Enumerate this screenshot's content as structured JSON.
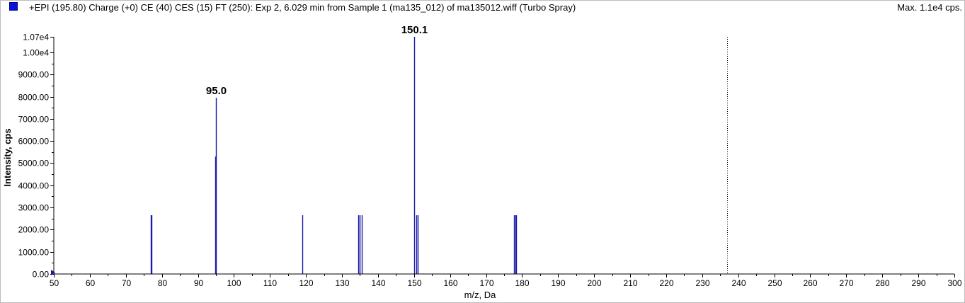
{
  "header": {
    "title": "+EPI (195.80) Charge (+0) CE (40) CES (15) FT (250): Exp 2, 6.029 min from Sample 1 (ma135_012) of ma135012.wiff (Turbo Spray)",
    "max_label": "Max. 1.1e4 cps."
  },
  "colors": {
    "series": "#1a1aa6",
    "legend_swatch": "#0a14d8",
    "axis": "#000000"
  },
  "chart_data": {
    "type": "bar",
    "title": "+EPI (195.80) Charge (+0) CE (40) CES (15) FT (250): Exp 2, 6.029 min from Sample 1 (ma135_012) of ma135012.wiff (Turbo Spray)",
    "xlabel": "m/z, Da",
    "ylabel": "Intensity, cps",
    "xlim": [
      50,
      300
    ],
    "ylim": [
      0,
      10700
    ],
    "x_ticks": [
      "50",
      "60",
      "70",
      "80",
      "90",
      "100",
      "110",
      "120",
      "130",
      "140",
      "150",
      "160",
      "170",
      "180",
      "190",
      "200",
      "210",
      "220",
      "230",
      "240",
      "250",
      "260",
      "270",
      "280",
      "290",
      "300"
    ],
    "y_ticks": [
      {
        "value": 0,
        "label": "0.00"
      },
      {
        "value": 1000,
        "label": "1000.00"
      },
      {
        "value": 2000,
        "label": "2000.00"
      },
      {
        "value": 3000,
        "label": "3000.00"
      },
      {
        "value": 4000,
        "label": "4000.00"
      },
      {
        "value": 5000,
        "label": "5000.00"
      },
      {
        "value": 6000,
        "label": "6000.00"
      },
      {
        "value": 7000,
        "label": "7000.00"
      },
      {
        "value": 8000,
        "label": "8000.00"
      },
      {
        "value": 9000,
        "label": "9000.00"
      },
      {
        "value": 10000,
        "label": "1.00e4"
      },
      {
        "value": 10700,
        "label": "1.07e4"
      }
    ],
    "series": [
      {
        "peaks": [
          {
            "mz": 76.9,
            "intensity": 2650
          },
          {
            "mz": 77.1,
            "intensity": 2650
          },
          {
            "mz": 94.9,
            "intensity": 5300
          },
          {
            "mz": 95.0,
            "intensity": 7950,
            "label": "95.0"
          },
          {
            "mz": 119.0,
            "intensity": 2650
          },
          {
            "mz": 134.6,
            "intensity": 2650
          },
          {
            "mz": 135.0,
            "intensity": 2650
          },
          {
            "mz": 135.4,
            "intensity": 2650
          },
          {
            "mz": 150.1,
            "intensity": 10700,
            "label": "150.1"
          },
          {
            "mz": 150.6,
            "intensity": 2650
          },
          {
            "mz": 151.1,
            "intensity": 2650
          },
          {
            "mz": 177.8,
            "intensity": 2650
          },
          {
            "mz": 178.1,
            "intensity": 2650
          },
          {
            "mz": 178.3,
            "intensity": 2650
          }
        ]
      }
    ],
    "precursor_marker_mz": 236.9,
    "grid": false,
    "legend": "top-left"
  }
}
